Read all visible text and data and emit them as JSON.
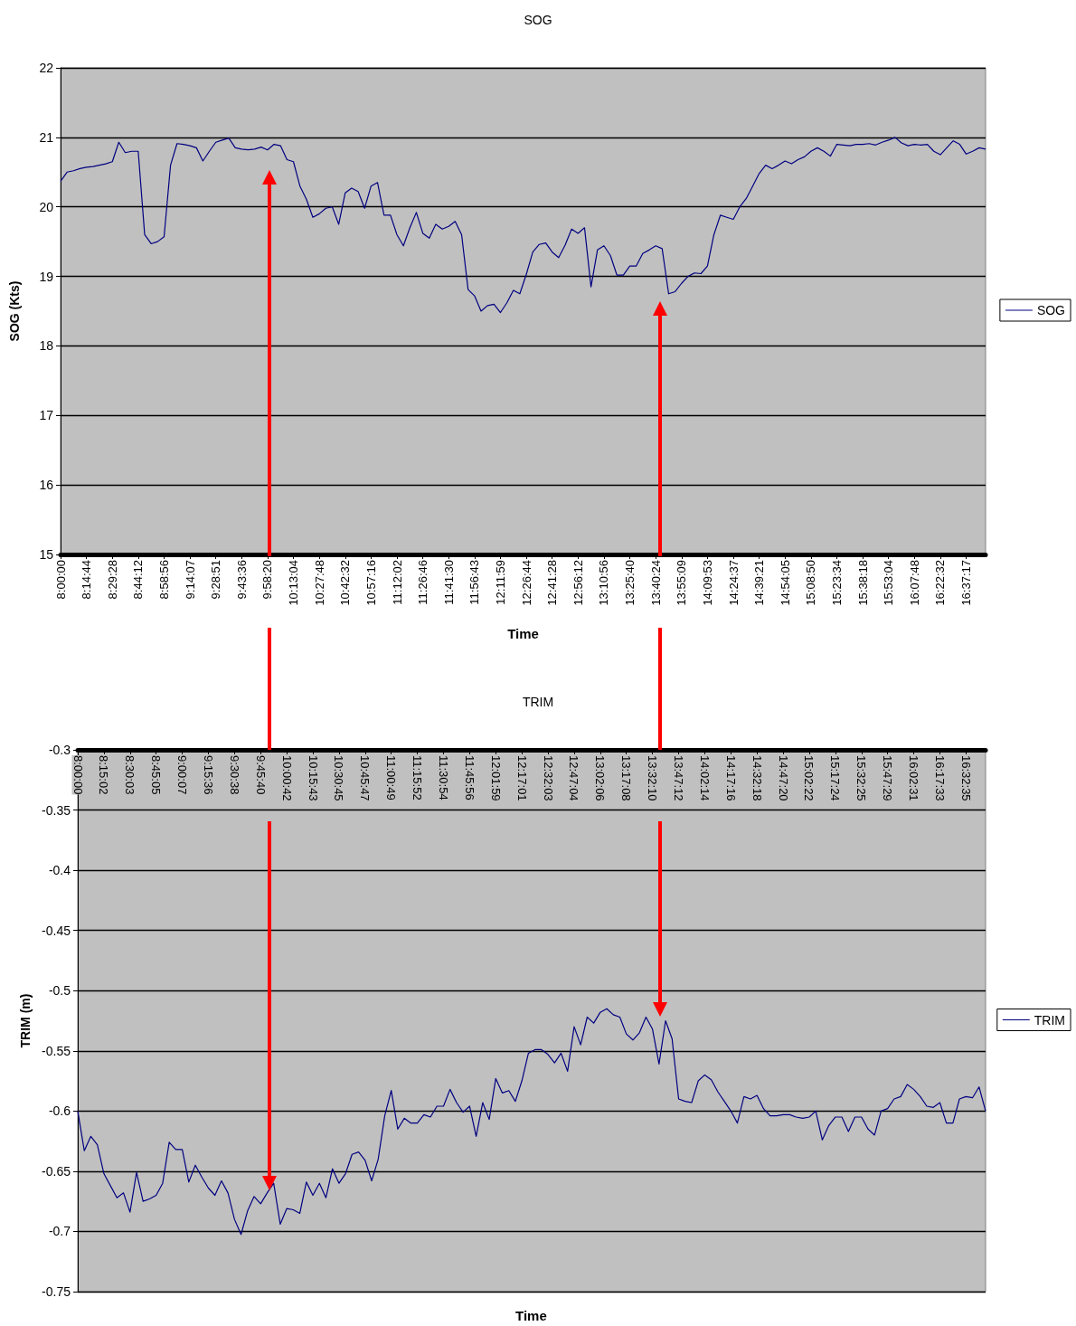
{
  "chart_data": [
    {
      "type": "line",
      "title": "SOG",
      "xlabel": "Time",
      "ylabel": "SOG (Kts)",
      "categories": [
        "8:00:00",
        null,
        null,
        null,
        "8:14:44",
        null,
        null,
        null,
        "8:29:28",
        null,
        null,
        null,
        "8:44:12",
        null,
        null,
        null,
        "8:58:56",
        null,
        null,
        null,
        "9:14:07",
        null,
        null,
        null,
        "9:28:51",
        null,
        null,
        null,
        "9:43:36",
        null,
        null,
        null,
        "9:58:20",
        null,
        null,
        null,
        "10:13:04",
        null,
        null,
        null,
        "10:27:48",
        null,
        null,
        null,
        "10:42:32",
        null,
        null,
        null,
        "10:57:16",
        null,
        null,
        null,
        "11:12:02",
        null,
        null,
        null,
        "11:26:46",
        null,
        null,
        null,
        "11:41:30",
        null,
        null,
        null,
        "11:56:43",
        null,
        null,
        null,
        "12:11:59",
        null,
        null,
        null,
        "12:26:44",
        null,
        null,
        null,
        "12:41:28",
        null,
        null,
        null,
        "12:56:12",
        null,
        null,
        null,
        "13:10:56",
        null,
        null,
        null,
        "13:25:40",
        null,
        null,
        null,
        "13:40:24",
        null,
        null,
        null,
        "13:55:09",
        null,
        null,
        null,
        "14:09:53",
        null,
        null,
        null,
        "14:24:37",
        null,
        null,
        null,
        "14:39:21",
        null,
        null,
        null,
        "14:54:05",
        null,
        null,
        null,
        "15:08:50",
        null,
        null,
        null,
        "15:23:34",
        null,
        null,
        null,
        "15:38:18",
        null,
        null,
        null,
        "15:53:04",
        null,
        null,
        null,
        "16:07:48",
        null,
        null,
        null,
        "16:22:32",
        null,
        null,
        null,
        "16:37:17",
        null,
        null,
        null
      ],
      "series": [
        {
          "name": "SOG",
          "color": "#000080",
          "values": [
            20.37,
            20.5,
            20.52,
            20.55,
            20.57,
            20.58,
            20.6,
            20.62,
            20.65,
            20.93,
            20.78,
            20.8,
            20.8,
            19.6,
            19.47,
            19.5,
            19.57,
            20.6,
            20.91,
            20.9,
            20.88,
            20.85,
            20.66,
            20.8,
            20.93,
            20.96,
            20.99,
            20.85,
            20.83,
            20.82,
            20.83,
            20.86,
            20.82,
            20.9,
            20.88,
            20.68,
            20.65,
            20.3,
            20.11,
            19.85,
            19.9,
            19.98,
            20.0,
            19.75,
            20.2,
            20.27,
            20.22,
            19.98,
            20.3,
            20.35,
            19.88,
            19.88,
            19.6,
            19.44,
            19.7,
            19.92,
            19.62,
            19.55,
            19.75,
            19.68,
            19.72,
            19.79,
            19.6,
            18.81,
            18.72,
            18.5,
            18.58,
            18.6,
            18.48,
            18.62,
            18.8,
            18.75,
            19.03,
            19.35,
            19.46,
            19.48,
            19.35,
            19.27,
            19.45,
            19.68,
            19.62,
            19.7,
            18.85,
            19.38,
            19.44,
            19.3,
            19.02,
            19.02,
            19.15,
            19.15,
            19.33,
            19.38,
            19.44,
            19.4,
            18.75,
            18.78,
            18.9,
            19.0,
            19.05,
            19.04,
            19.15,
            19.6,
            19.88,
            19.85,
            19.82,
            20.0,
            20.12,
            20.3,
            20.48,
            20.6,
            20.55,
            20.6,
            20.66,
            20.62,
            20.68,
            20.72,
            20.8,
            20.85,
            20.8,
            20.73,
            20.9,
            20.89,
            20.88,
            20.9,
            20.9,
            20.91,
            20.89,
            20.93,
            20.96,
            21.0,
            20.92,
            20.88,
            20.9,
            20.89,
            20.9,
            20.8,
            20.75,
            20.85,
            20.95,
            20.9,
            20.76,
            20.8,
            20.85,
            20.83
          ]
        }
      ],
      "ylim": [
        15,
        22
      ],
      "yticks": [
        15,
        16,
        17,
        18,
        19,
        20,
        21,
        22
      ],
      "grid": "y",
      "legend": "right"
    },
    {
      "type": "line",
      "title": "TRIM",
      "xlabel": "Time",
      "ylabel": "TRIM (m)",
      "categories": [
        "8:00:00",
        null,
        null,
        null,
        "8:15:02",
        null,
        null,
        null,
        "8:30:03",
        null,
        null,
        null,
        "8:45:05",
        null,
        null,
        null,
        "9:00:07",
        null,
        null,
        null,
        "9:15:36",
        null,
        null,
        null,
        "9:30:38",
        null,
        null,
        null,
        "9:45:40",
        null,
        null,
        null,
        "10:00:42",
        null,
        null,
        null,
        "10:15:43",
        null,
        null,
        null,
        "10:30:45",
        null,
        null,
        null,
        "10:45:47",
        null,
        null,
        null,
        "11:00:49",
        null,
        null,
        null,
        "11:15:52",
        null,
        null,
        null,
        "11:30:54",
        null,
        null,
        null,
        "11:45:56",
        null,
        null,
        null,
        "12:01:59",
        null,
        null,
        null,
        "12:17:01",
        null,
        null,
        null,
        "12:32:03",
        null,
        null,
        null,
        "12:47:04",
        null,
        null,
        null,
        "13:02:06",
        null,
        null,
        null,
        "13:17:08",
        null,
        null,
        null,
        "13:32:10",
        null,
        null,
        null,
        "13:47:12",
        null,
        null,
        null,
        "14:02:14",
        null,
        null,
        null,
        "14:17:16",
        null,
        null,
        null,
        "14:32:18",
        null,
        null,
        null,
        "14:47:20",
        null,
        null,
        null,
        "15:02:22",
        null,
        null,
        null,
        "15:17:24",
        null,
        null,
        null,
        "15:32:25",
        null,
        null,
        null,
        "15:47:29",
        null,
        null,
        null,
        "16:02:31",
        null,
        null,
        null,
        "16:17:33",
        null,
        null,
        null,
        "16:32:35",
        null,
        null,
        null
      ],
      "series": [
        {
          "name": "TRIM",
          "color": "#000080",
          "values": [
            -0.6,
            -0.633,
            -0.621,
            -0.628,
            -0.652,
            -0.662,
            -0.672,
            -0.668,
            -0.684,
            -0.651,
            -0.675,
            -0.673,
            -0.67,
            -0.66,
            -0.626,
            -0.632,
            -0.632,
            -0.659,
            -0.645,
            -0.655,
            -0.664,
            -0.67,
            -0.658,
            -0.668,
            -0.69,
            -0.7025,
            -0.683,
            -0.671,
            -0.677,
            -0.668,
            -0.66,
            -0.694,
            -0.681,
            -0.682,
            -0.685,
            -0.659,
            -0.67,
            -0.66,
            -0.672,
            -0.648,
            -0.66,
            -0.652,
            -0.636,
            -0.634,
            -0.641,
            -0.658,
            -0.64,
            -0.604,
            -0.583,
            -0.615,
            -0.606,
            -0.61,
            -0.61,
            -0.603,
            -0.605,
            -0.596,
            -0.596,
            -0.582,
            -0.593,
            -0.601,
            -0.596,
            -0.621,
            -0.593,
            -0.607,
            -0.573,
            -0.585,
            -0.583,
            -0.592,
            -0.575,
            -0.552,
            -0.549,
            -0.549,
            -0.553,
            -0.56,
            -0.552,
            -0.567,
            -0.53,
            -0.545,
            -0.522,
            -0.527,
            -0.518,
            -0.515,
            -0.52,
            -0.522,
            -0.536,
            -0.541,
            -0.535,
            -0.522,
            -0.532,
            -0.561,
            -0.525,
            -0.54,
            -0.59,
            -0.592,
            -0.593,
            -0.575,
            -0.57,
            -0.574,
            -0.584,
            -0.592,
            -0.6,
            -0.61,
            -0.588,
            -0.59,
            -0.587,
            -0.598,
            -0.604,
            -0.604,
            -0.603,
            -0.603,
            -0.605,
            -0.606,
            -0.605,
            -0.6,
            -0.624,
            -0.612,
            -0.605,
            -0.605,
            -0.617,
            -0.605,
            -0.605,
            -0.615,
            -0.62,
            -0.6,
            -0.598,
            -0.59,
            -0.588,
            -0.578,
            -0.582,
            -0.588,
            -0.596,
            -0.597,
            -0.593,
            -0.61,
            -0.61,
            -0.59,
            -0.588,
            -0.589,
            -0.58,
            -0.6
          ]
        }
      ],
      "ylim": [
        -0.75,
        -0.3
      ],
      "yticks": [
        -0.75,
        -0.7,
        -0.65,
        -0.6,
        -0.55,
        -0.5,
        -0.45,
        -0.4,
        -0.35,
        -0.3
      ],
      "grid": "y",
      "legend": "right"
    }
  ]
}
